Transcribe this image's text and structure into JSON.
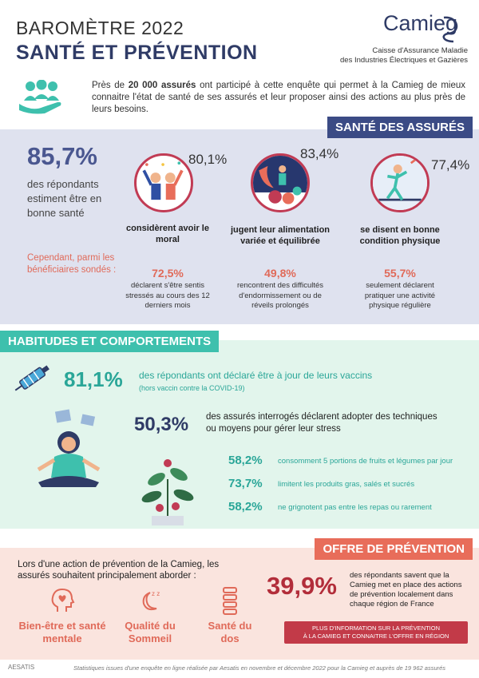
{
  "header": {
    "title_line1": "BAROMÈTRE 2022",
    "title_line2": "SANTÉ ET PRÉVENTION",
    "logo_text": "Camieg",
    "logo_sub1": "Caisse d'Assurance Maladie",
    "logo_sub2": "des Industries Électriques et Gazières"
  },
  "intro": {
    "icon": "people-hand-icon",
    "text_pre": "Près de ",
    "text_bold": "20 000 assurés",
    "text_post": " ont participé à cette enquête qui permet à la Camieg de mieux connaitre l'état de santé de ses assurés et leur proposer ainsi des actions au plus près de leurs besoins."
  },
  "sante": {
    "tag": "SANTÉ DES ASSURÉS",
    "big_pct": "85,7%",
    "big_desc": "des répondants estiment être en bonne santé",
    "cependant": "Cependant, parmi les bénéficiaires sondés :",
    "items": [
      {
        "pct": "80,1%",
        "label": "considèrent avoir le moral",
        "sub_pct": "72,5%",
        "sub_desc": "déclarent s'être sentis stressés au cours des 12 derniers mois"
      },
      {
        "pct": "83,4%",
        "label": "jugent leur alimentation variée et équilibrée",
        "sub_pct": "49,8%",
        "sub_desc": "rencontrent des difficultés d'endormissement ou de réveils prolongés"
      },
      {
        "pct": "77,4%",
        "label": "se disent en bonne condition physique",
        "sub_pct": "55,7%",
        "sub_desc": "seulement déclarent pratiquer une activité physique régulière"
      }
    ]
  },
  "habitudes": {
    "tag": "HABITUDES ET COMPORTEMENTS",
    "vaccin_pct": "81,1%",
    "vaccin_desc": "des répondants ont déclaré être à jour de leurs vaccins",
    "vaccin_sub": "(hors vaccin contre la COVID-19)",
    "stress_pct": "50,3%",
    "stress_desc": "des assurés interrogés déclarent adopter des techniques ou moyens pour gérer leur stress",
    "rows": [
      {
        "pct": "58,2%",
        "text": "consomment 5 portions de fruits et légumes par jour"
      },
      {
        "pct": "73,7%",
        "text": "limitent les produits gras, salés et sucrés"
      },
      {
        "pct": "58,2%",
        "text": "ne grignotent pas entre les repas ou rarement"
      }
    ]
  },
  "offre": {
    "tag": "OFFRE DE PRÉVENTION",
    "intro": "Lors d'une action de prévention de la Camieg, les assurés souhaitent principalement aborder :",
    "items": [
      {
        "icon": "heart-head-icon",
        "label": "Bien-être et santé mentale"
      },
      {
        "icon": "moon-sleep-icon",
        "label": "Qualité du Sommeil"
      },
      {
        "icon": "spine-icon",
        "label": "Santé du dos"
      }
    ],
    "big_pct": "39,9%",
    "big_desc": "des répondants savent que la Camieg met en place des actions de prévention localement dans chaque région de France",
    "button_line1": "PLUS D'INFORMATION SUR LA PRÉVENTION",
    "button_line2": "À LA CAMIEG ET CONNAITRE L'OFFRE EN RÉGION"
  },
  "footer": {
    "logo": "AESATIS",
    "text": "Statistiques issues d'une enquête en ligne réalisée par Aesatis en novembre et décembre 2022 pour la Camieg et auprès de 19 962 assurés"
  },
  "colors": {
    "navy": "#2f3b66",
    "teal": "#2aa698",
    "coral": "#e06a59",
    "crimson": "#b22d3a"
  }
}
